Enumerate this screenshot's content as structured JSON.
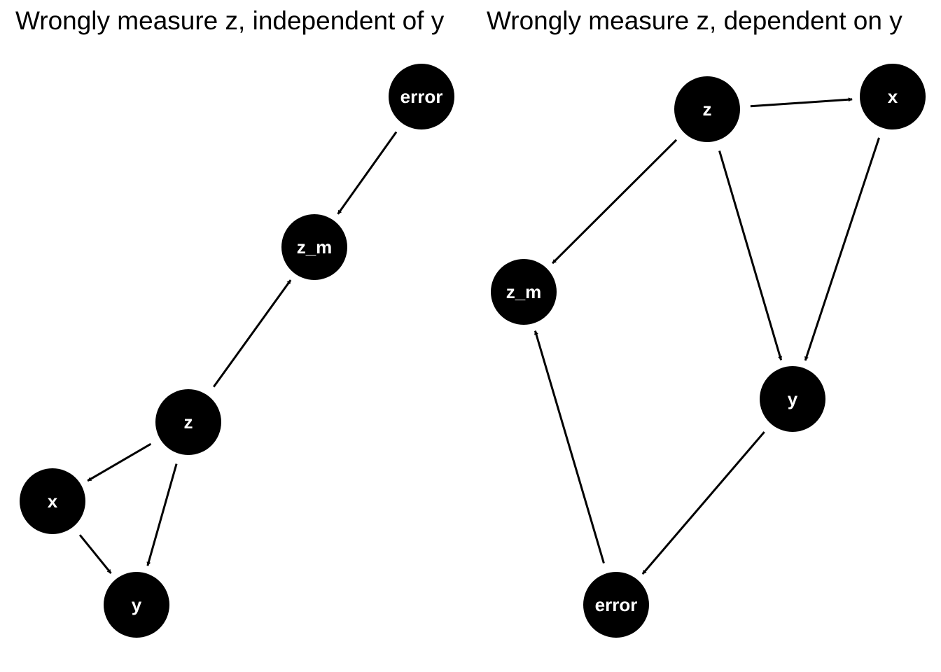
{
  "panels": [
    {
      "title": "Wrongly measure z, independent of y",
      "nodes": [
        {
          "id": "error",
          "label": "error"
        },
        {
          "id": "z_m",
          "label": "z_m"
        },
        {
          "id": "z",
          "label": "z"
        },
        {
          "id": "x",
          "label": "x"
        },
        {
          "id": "y",
          "label": "y"
        }
      ],
      "edges": [
        {
          "from": "error",
          "to": "z_m"
        },
        {
          "from": "z",
          "to": "z_m"
        },
        {
          "from": "z",
          "to": "x"
        },
        {
          "from": "z",
          "to": "y"
        },
        {
          "from": "x",
          "to": "y"
        }
      ]
    },
    {
      "title": "Wrongly measure z, dependent on y",
      "nodes": [
        {
          "id": "z",
          "label": "z"
        },
        {
          "id": "x",
          "label": "x"
        },
        {
          "id": "z_m",
          "label": "z_m"
        },
        {
          "id": "y",
          "label": "y"
        },
        {
          "id": "error",
          "label": "error"
        }
      ],
      "edges": [
        {
          "from": "z",
          "to": "x"
        },
        {
          "from": "z",
          "to": "z_m"
        },
        {
          "from": "z",
          "to": "y"
        },
        {
          "from": "x",
          "to": "y"
        },
        {
          "from": "y",
          "to": "error"
        },
        {
          "from": "error",
          "to": "z_m"
        }
      ]
    }
  ],
  "colors": {
    "node_fill": "#000000",
    "node_text": "#ffffff",
    "edge": "#000000",
    "background": "#ffffff"
  }
}
